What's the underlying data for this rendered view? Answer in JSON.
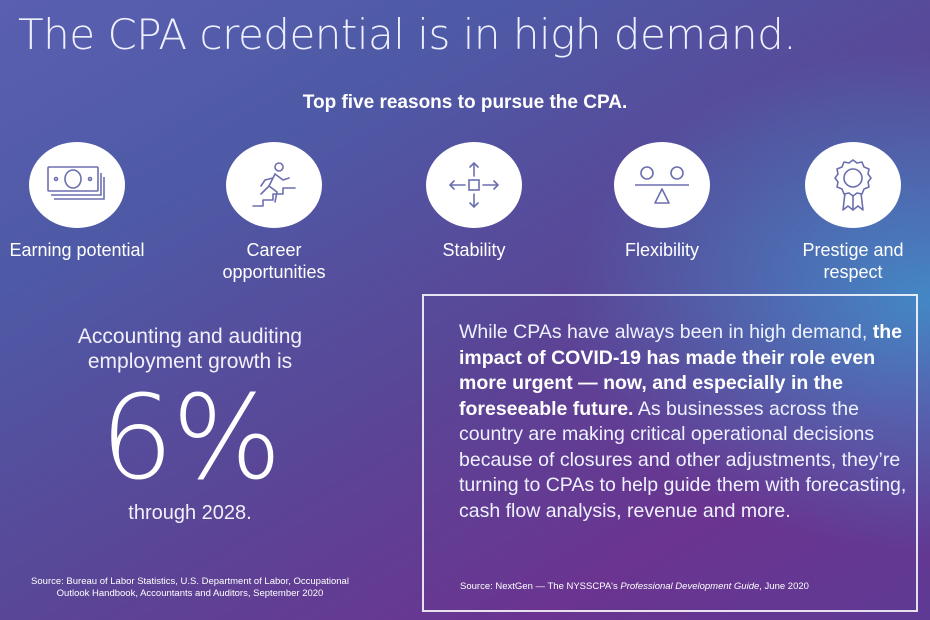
{
  "headline": "The CPA credential is in high demand.",
  "subhead": "Top five reasons to pursue the CPA.",
  "reasons": [
    {
      "label": "Earning potential",
      "icon": "money-stack-icon"
    },
    {
      "label": "Career opportunities",
      "icon": "climbing-stairs-icon"
    },
    {
      "label": "Stability",
      "icon": "arrows-center-icon"
    },
    {
      "label": "Flexibility",
      "icon": "balance-scale-icon"
    },
    {
      "label": "Prestige and respect",
      "icon": "award-ribbon-icon"
    }
  ],
  "stat": {
    "label": "Accounting and auditing employment growth is",
    "value": "6%",
    "after": "through 2028."
  },
  "source_left": "Source: Bureau of Labor Statistics, U.S. Department of Labor, Occupational Outlook Handbook, Accountants and Auditors, September 2020",
  "quote": {
    "part1": "While CPAs have always been in high demand, ",
    "bold": "the impact of COVID-19 has made their role even more urgent — now, and especially in the foreseeable future.",
    "part2": " As businesses across the country are making critical operational decisions because of closures and other adjustments, they’re turning to CPAs to help guide them with forecasting, cash flow analysis, revenue and more."
  },
  "source_right": {
    "prefix": "Source: NextGen — The NYSSCPA's ",
    "italic": "Professional Development Guide",
    "suffix": ", June 2020"
  },
  "colors": {
    "icon_stroke": "#6a6fae",
    "bg_purple": "#6a3490",
    "bg_cyan": "#28c8f0"
  }
}
